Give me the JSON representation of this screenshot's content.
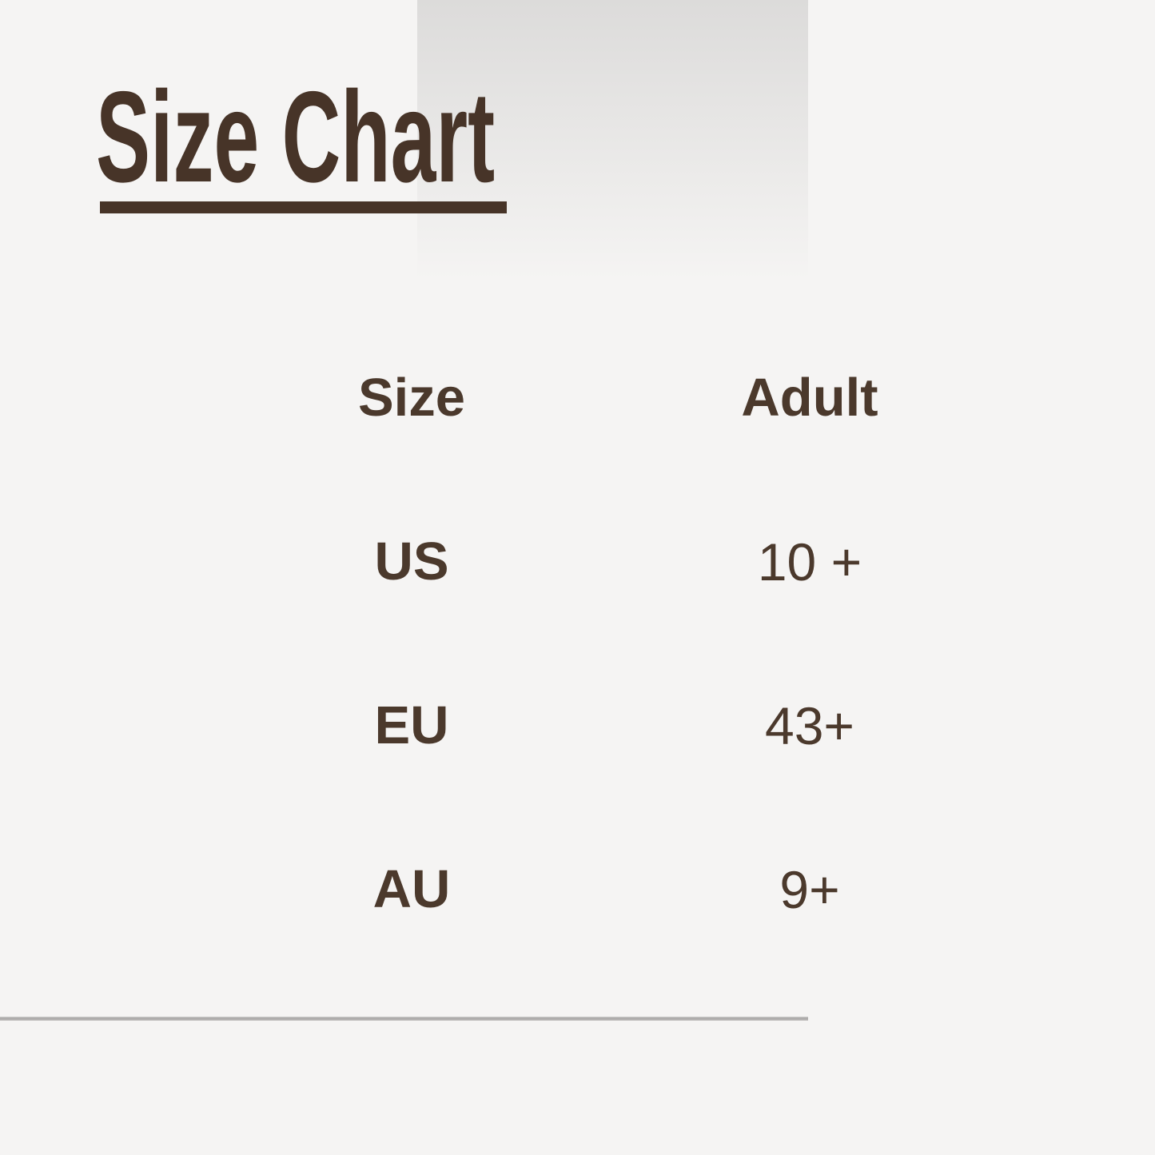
{
  "title": "Size Chart",
  "chart_data": {
    "type": "table",
    "title": "Size Chart",
    "columns": [
      "Size",
      "Adult"
    ],
    "rows": [
      [
        "US",
        "10 +"
      ],
      [
        "EU",
        "43+"
      ],
      [
        "AU",
        "9+"
      ]
    ]
  },
  "colors": {
    "background": "#f5f4f3",
    "title_brown": "#473428",
    "table_text_brown": "#4b392c",
    "divider_gray": "#a8a6a5",
    "top_gradient_gray": "#dcdbda"
  }
}
